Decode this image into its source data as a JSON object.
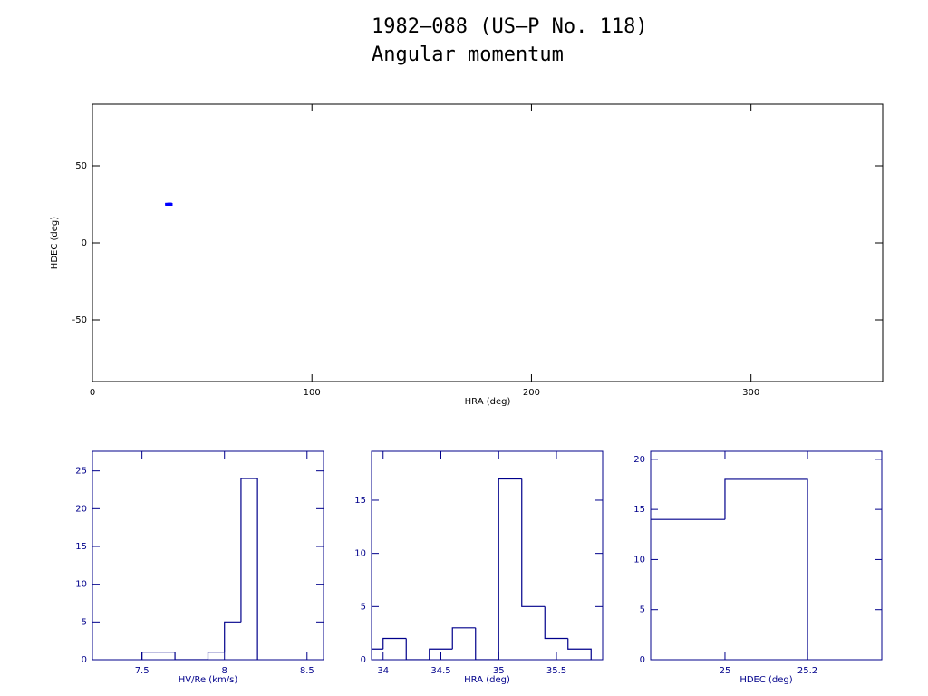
{
  "title": "1982–088 (US–P No. 118)",
  "subtitle": "Angular momentum",
  "chart_data": [
    {
      "type": "scatter",
      "x_label": "HRA (deg)",
      "y_label": "HDEC (deg)",
      "x": [
        33.9,
        34.1,
        34.5,
        34.7,
        35.1,
        35.3,
        35.5,
        35.7
      ],
      "values": [
        25.1,
        25.0,
        25.1,
        25.0,
        25.1,
        25.2,
        25.1,
        25.0
      ],
      "color": "#0000ff",
      "axis_color": "#000000",
      "xlim": [
        0,
        360
      ],
      "xticks": [
        0,
        100,
        200,
        300
      ],
      "ylim": [
        -90,
        90
      ],
      "yticks": [
        -50,
        0,
        50
      ]
    },
    {
      "type": "histogram",
      "x_label": "HV/Re (km/s)",
      "bins": [
        7.5,
        7.6,
        7.7,
        7.8,
        7.9,
        8.0,
        8.1,
        8.2
      ],
      "values": [
        1,
        1,
        0,
        0,
        1,
        5,
        24
      ],
      "color": "#00008b",
      "axis_color": "#00008b",
      "xlim": [
        7.2,
        8.6
      ],
      "xticks": [
        7.5,
        8,
        8.5
      ],
      "ylim": [
        0,
        27.6
      ],
      "yticks": [
        0,
        5,
        10,
        15,
        20,
        25
      ]
    },
    {
      "type": "histogram",
      "x_label": "HRA (deg)",
      "bins": [
        33.8,
        34.0,
        34.2,
        34.4,
        34.6,
        34.8,
        35.0,
        35.2,
        35.4,
        35.6,
        35.8
      ],
      "values": [
        1,
        2,
        0,
        1,
        3,
        0,
        17,
        5,
        2,
        1
      ],
      "color": "#00008b",
      "axis_color": "#00008b",
      "xlim": [
        33.9,
        35.9
      ],
      "xticks": [
        34,
        34.5,
        35,
        35.5
      ],
      "ylim": [
        0,
        19.6
      ],
      "yticks": [
        0,
        5,
        10,
        15
      ]
    },
    {
      "type": "histogram",
      "x_label": "HDEC (deg)",
      "bins": [
        24.8,
        25.0,
        25.2
      ],
      "values": [
        14,
        18
      ],
      "color": "#00008b",
      "axis_color": "#00008b",
      "xlim": [
        24.82,
        25.38
      ],
      "xticks": [
        25,
        25.2
      ],
      "ylim": [
        0,
        20.8
      ],
      "yticks": [
        0,
        5,
        10,
        15,
        20
      ]
    }
  ]
}
